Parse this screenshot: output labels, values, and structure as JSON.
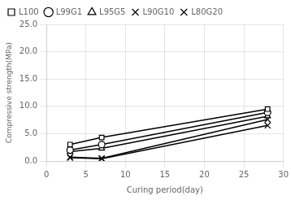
{
  "chart_data": {
    "type": "line",
    "x": [
      3,
      7,
      28
    ],
    "series": [
      {
        "name": "L100",
        "color": "black",
        "marker": "square",
        "values": [
          3.0,
          4.3,
          9.5
        ]
      },
      {
        "name": "L99G1",
        "color": "black",
        "marker": "circle",
        "values": [
          2.0,
          3.0,
          8.9
        ]
      },
      {
        "name": "L95G5",
        "color": "black",
        "marker": "triangle",
        "values": [
          1.7,
          2.3,
          8.2
        ]
      },
      {
        "name": "L90G10",
        "color": "black",
        "marker": "x",
        "values": [
          0.7,
          0.5,
          7.6
        ]
      },
      {
        "name": "L80G20",
        "color": "black",
        "marker": "x",
        "values": [
          0.6,
          0.4,
          6.5
        ]
      }
    ],
    "xlabel": "Curing period(day)",
    "ylabel": "Compressive strength(MPa)",
    "xlim": [
      0,
      30
    ],
    "ylim": [
      0.0,
      25.0
    ],
    "xticks": [
      0,
      5,
      10,
      15,
      20,
      25,
      30
    ],
    "yticks": [
      {
        "value": 0,
        "label": "0.0"
      },
      {
        "value": 5,
        "label": "5.0"
      },
      {
        "value": 10,
        "label": "10.0"
      },
      {
        "value": 15,
        "label": "15.0"
      },
      {
        "value": 20,
        "label": "20.0"
      },
      {
        "value": 25,
        "label": "25.0"
      }
    ],
    "grid": true,
    "legend": "upper left"
  }
}
